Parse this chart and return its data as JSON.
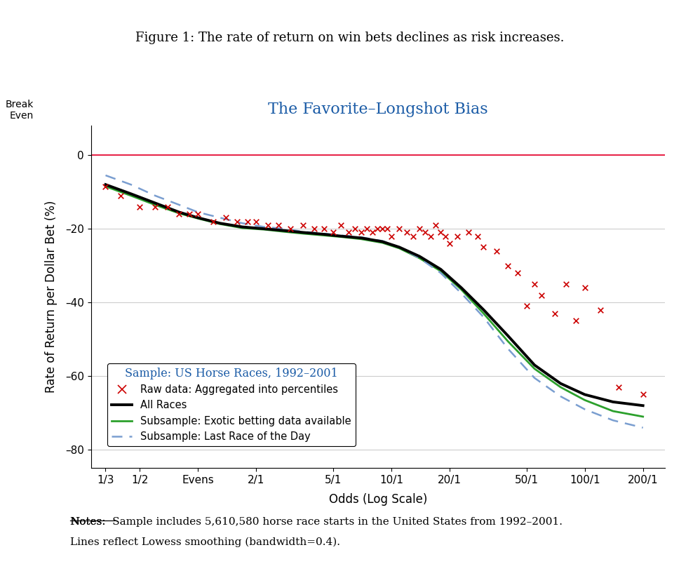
{
  "title_figure": "Figure 1: The rate of return on win bets declines as risk increases.",
  "title_chart": "The Favorite–Longshot Bias",
  "xlabel": "Odds (Log Scale)",
  "ylabel": "Rate of Return per Dollar Bet (%)",
  "break_even_label": "Break\nEven",
  "break_even_y": 0,
  "ylim": [
    -85,
    8
  ],
  "yticks": [
    0,
    -20,
    -40,
    -60,
    -80
  ],
  "ytick_labels": [
    "0",
    "–20",
    "–40",
    "–60",
    "–80"
  ],
  "xtick_positions": [
    0.333,
    0.5,
    1.0,
    2.0,
    5.0,
    10.0,
    20.0,
    50.0,
    100.0,
    200.0
  ],
  "xtick_labels": [
    "1/3",
    "1/2",
    "Evens",
    "2/1",
    "5/1",
    "10/1",
    "20/1",
    "50/1",
    "100/1",
    "200/1"
  ],
  "background_color": "#ffffff",
  "figure_title_color": "#000000",
  "chart_title_color": "#1a5ba6",
  "break_even_line_color": "#e8274b",
  "grid_color": "#cccccc",
  "scatter_color": "#cc0000",
  "all_races_color": "#000000",
  "exotic_color": "#2ca02c",
  "last_race_color": "#7a9ed0",
  "legend_title": "Sample: US Horse Races, 1992–2001",
  "legend_title_color": "#1a5ba6",
  "notes_prefix": "Notes:",
  "notes_line1": "  Sample includes 5,610,580 horse race starts in the United States from 1992–2001.",
  "notes_line2": "Lines reflect Lowess smoothing (bandwidth=0.4).",
  "scatter_x": [
    0.333,
    0.4,
    0.5,
    0.6,
    0.7,
    0.8,
    0.9,
    1.0,
    1.2,
    1.4,
    1.6,
    1.8,
    2.0,
    2.3,
    2.6,
    3.0,
    3.5,
    4.0,
    4.5,
    5.0,
    5.5,
    6.0,
    6.5,
    7.0,
    7.5,
    8.0,
    8.5,
    9.0,
    9.5,
    10.0,
    11.0,
    12.0,
    13.0,
    14.0,
    15.0,
    16.0,
    17.0,
    18.0,
    19.0,
    20.0,
    22.0,
    25.0,
    28.0,
    30.0,
    35.0,
    40.0,
    45.0,
    50.0,
    55.0,
    60.0,
    70.0,
    80.0,
    90.0,
    100.0,
    120.0,
    150.0,
    200.0
  ],
  "scatter_y": [
    -8.5,
    -11,
    -14,
    -14,
    -14,
    -16,
    -16,
    -16,
    -18,
    -17,
    -18,
    -18,
    -18,
    -19,
    -19,
    -20,
    -19,
    -20,
    -20,
    -21,
    -19,
    -21,
    -20,
    -21,
    -20,
    -21,
    -20,
    -20,
    -20,
    -22,
    -20,
    -21,
    -22,
    -20,
    -21,
    -22,
    -19,
    -21,
    -22,
    -24,
    -22,
    -21,
    -22,
    -25,
    -26,
    -30,
    -32,
    -41,
    -35,
    -38,
    -43,
    -35,
    -45,
    -36,
    -42,
    -63,
    -65
  ],
  "all_races_x": [
    0.333,
    0.45,
    0.6,
    0.8,
    1.0,
    1.3,
    1.7,
    2.2,
    2.8,
    3.5,
    4.5,
    5.5,
    7.0,
    9.0,
    11.0,
    14.0,
    18.0,
    23.0,
    30.0,
    40.0,
    55.0,
    75.0,
    100.0,
    140.0,
    200.0
  ],
  "all_races_y": [
    -8.0,
    -10.5,
    -13.0,
    -15.5,
    -17.0,
    -18.5,
    -19.5,
    -20.0,
    -20.5,
    -21.0,
    -21.5,
    -22.0,
    -22.5,
    -23.5,
    -25.0,
    -27.5,
    -31.0,
    -36.0,
    -42.0,
    -49.0,
    -57.0,
    -62.0,
    -65.0,
    -67.0,
    -68.0
  ],
  "exotic_x": [
    0.333,
    0.45,
    0.6,
    0.8,
    1.0,
    1.3,
    1.7,
    2.2,
    2.8,
    3.5,
    4.5,
    5.5,
    7.0,
    9.0,
    11.0,
    14.0,
    18.0,
    23.0,
    30.0,
    40.0,
    55.0,
    75.0,
    100.0,
    140.0,
    200.0
  ],
  "exotic_y": [
    -8.5,
    -11.0,
    -13.5,
    -15.8,
    -17.2,
    -18.7,
    -19.8,
    -20.2,
    -20.8,
    -21.3,
    -21.8,
    -22.2,
    -22.8,
    -23.8,
    -25.3,
    -28.0,
    -31.5,
    -36.5,
    -43.0,
    -50.5,
    -58.0,
    -63.0,
    -66.5,
    -69.5,
    -71.0
  ],
  "last_race_x": [
    0.333,
    0.45,
    0.6,
    0.8,
    1.0,
    1.3,
    1.7,
    2.2,
    2.8,
    3.5,
    4.5,
    5.5,
    7.0,
    9.0,
    11.0,
    14.0,
    18.0,
    23.0,
    30.0,
    40.0,
    55.0,
    75.0,
    100.0,
    140.0,
    200.0
  ],
  "last_race_y": [
    -5.5,
    -8.0,
    -11.0,
    -13.5,
    -15.5,
    -17.0,
    -18.5,
    -19.5,
    -20.0,
    -20.8,
    -21.3,
    -21.8,
    -22.3,
    -23.3,
    -25.0,
    -28.0,
    -32.0,
    -37.5,
    -44.0,
    -52.5,
    -60.5,
    -65.5,
    -69.0,
    -72.0,
    -74.0
  ]
}
